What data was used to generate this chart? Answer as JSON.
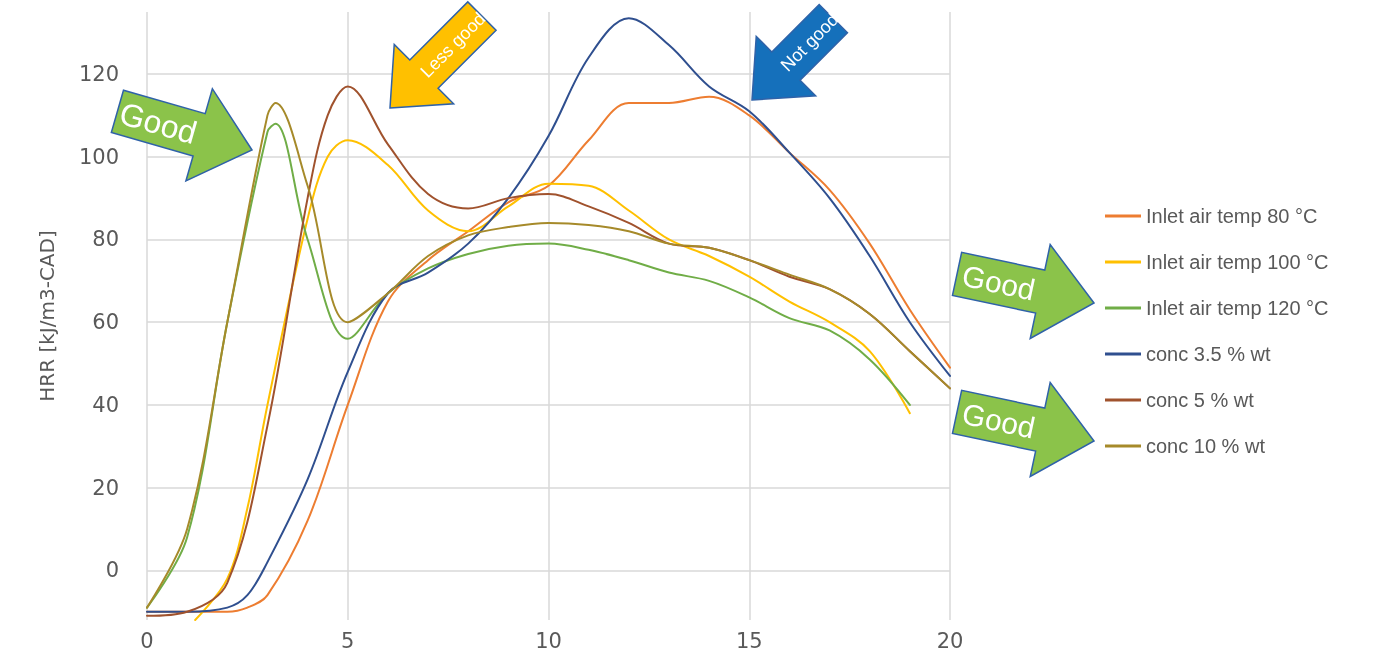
{
  "chart_data": {
    "type": "line",
    "ylabel": "HRR [kJ/m3-CAD]",
    "xlim": [
      0,
      20
    ],
    "xticks": [
      0,
      5,
      10,
      15,
      20
    ],
    "ylim": [
      -12,
      135
    ],
    "yticks": [
      0,
      20,
      40,
      60,
      80,
      100,
      120
    ],
    "grid": true,
    "legend": "right",
    "marker": "none",
    "line_style": "solid",
    "series": [
      {
        "name": "Inlet air temp 80 °C",
        "color": "#ed7d31",
        "x": [
          0,
          1,
          2,
          2.5,
          3,
          4,
          5,
          6,
          7,
          8,
          9,
          10,
          11,
          12,
          13,
          14,
          15,
          16,
          17,
          18,
          19,
          20
        ],
        "values": [
          -10,
          -10,
          -10,
          -9,
          -6,
          12,
          40,
          65,
          75,
          82,
          89,
          93,
          104,
          113,
          113,
          114.5,
          110,
          101,
          92,
          79,
          63,
          49
        ]
      },
      {
        "name": "Inlet air temp 100 °C",
        "color": "#ffc000",
        "x": [
          1.2,
          2,
          2.5,
          3,
          4,
          4.5,
          5,
          6,
          7,
          8,
          9,
          10,
          11,
          12,
          13,
          14,
          15,
          16,
          17,
          18,
          19
        ],
        "values": [
          -12,
          -2,
          15,
          40,
          85,
          100,
          104,
          98,
          87,
          82,
          88,
          93.5,
          93,
          87,
          80,
          76,
          71,
          65,
          60,
          53,
          38
        ]
      },
      {
        "name": "Inlet air temp 120 °C",
        "color": "#70ad47",
        "x": [
          0,
          1,
          2,
          3,
          3.2,
          4,
          5,
          6,
          7,
          8,
          9,
          10,
          11,
          12,
          13,
          14,
          15,
          16,
          17,
          18,
          19
        ],
        "values": [
          -9,
          8,
          60,
          106,
          108,
          80,
          56,
          67,
          73,
          76.5,
          78.5,
          79,
          77.5,
          75,
          72,
          70,
          66,
          61,
          58,
          51,
          40
        ]
      },
      {
        "name": "conc 3.5 % wt",
        "color": "#2f4f8f",
        "x": [
          0,
          1,
          2,
          2.5,
          3,
          4,
          5,
          6,
          7,
          8,
          9,
          10,
          11,
          12,
          13,
          14,
          15,
          16,
          17,
          18,
          19,
          20
        ],
        "values": [
          -10,
          -10,
          -9,
          -6,
          2,
          22,
          48,
          67,
          72,
          79,
          90,
          105,
          124,
          133.5,
          127,
          117,
          111,
          101,
          90,
          76,
          60,
          47
        ]
      },
      {
        "name": "conc 5 % wt",
        "color": "#a0522d",
        "x": [
          0,
          1,
          2,
          3,
          4,
          4.5,
          5,
          6,
          7,
          8,
          9,
          10,
          11,
          12,
          13,
          14,
          15,
          16,
          17,
          18,
          19,
          20
        ],
        "values": [
          -11,
          -10,
          -3,
          35,
          90,
          110,
          117,
          103,
          91,
          87.5,
          90,
          91,
          88,
          84,
          79,
          78,
          75,
          71,
          68,
          62,
          53,
          44
        ]
      },
      {
        "name": "conc 10 % wt",
        "color": "#a68a2a",
        "x": [
          0,
          1,
          2,
          3,
          3.2,
          4,
          5,
          6,
          7,
          8,
          9,
          10,
          11,
          12,
          13,
          14,
          15,
          16,
          17,
          18,
          19,
          20
        ],
        "values": [
          -9,
          10,
          60,
          110,
          113,
          93,
          60,
          67,
          76,
          81,
          83,
          84,
          83.5,
          82,
          79,
          78,
          75,
          71.5,
          68,
          62,
          53,
          44
        ]
      }
    ],
    "annotations": [
      "Good",
      "Less good",
      "Not good",
      "Good",
      "Good"
    ]
  }
}
